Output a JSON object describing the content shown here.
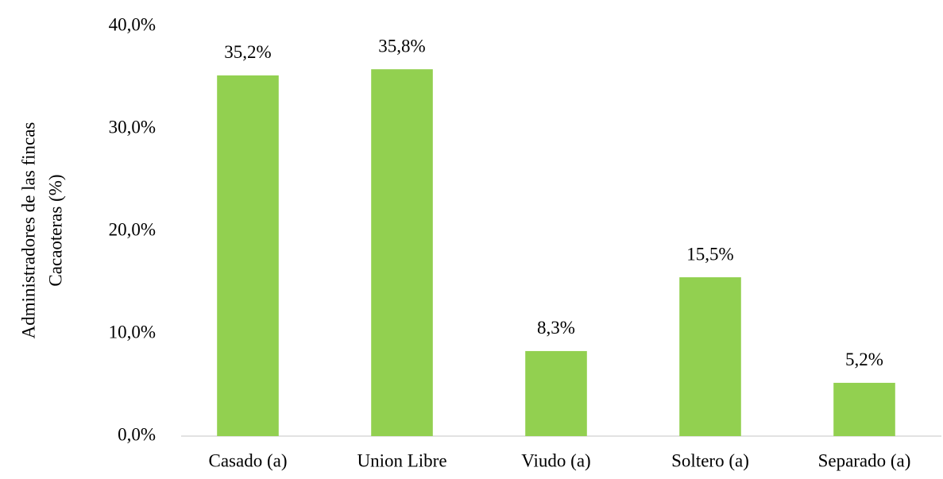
{
  "chart_data": {
    "type": "bar",
    "ylabel": [
      "Administradores de las fincas",
      "Cacaoteras (%)"
    ],
    "categories": [
      "Casado (a)",
      "Union Libre",
      "Viudo (a)",
      "Soltero (a)",
      "Separado (a)"
    ],
    "values": [
      35.2,
      35.8,
      8.3,
      15.5,
      5.2
    ],
    "value_labels": [
      "35,2%",
      "35,8%",
      "8,3%",
      "15,5%",
      "5,2%"
    ],
    "color": "#92d050",
    "ylim": [
      0,
      40
    ],
    "yticks": [
      {
        "value": 0,
        "label": "0,0%"
      },
      {
        "value": 10,
        "label": "10,0%"
      },
      {
        "value": 20,
        "label": "20,0%"
      },
      {
        "value": 30,
        "label": "30,0%"
      },
      {
        "value": 40,
        "label": "40,0%"
      }
    ],
    "grid": false
  }
}
